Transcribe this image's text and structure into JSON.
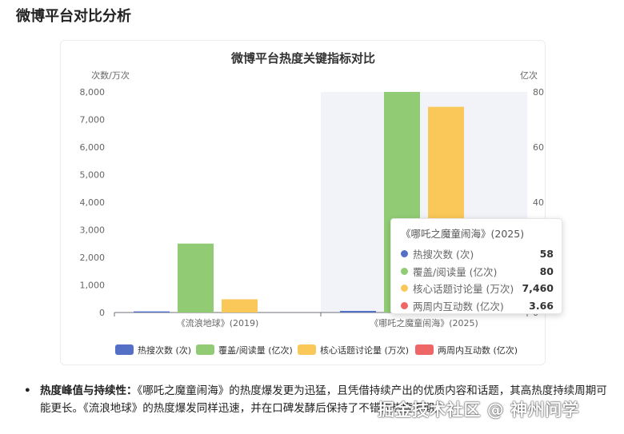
{
  "section_title": "微博平台对比分析",
  "tooltip": {
    "title": "《哪吒之魔童闹海》(2025)",
    "rows": [
      {
        "name": "热搜次数 (次)",
        "value": "58",
        "color": "#5470c6"
      },
      {
        "name": "覆盖/阅读量 (亿次)",
        "value": "80",
        "color": "#91cc75"
      },
      {
        "name": "核心话题讨论量 (万次)",
        "value": "7,460",
        "color": "#fac858"
      },
      {
        "name": "两周内互动数 (亿次)",
        "value": "3.66",
        "color": "#ee6666"
      }
    ]
  },
  "chart_data": {
    "type": "bar",
    "title": "微博平台热度关键指标对比",
    "categories": [
      "《流浪地球》(2019)",
      "《哪吒之魔童闹海》(2025)"
    ],
    "highlighted_category": "《哪吒之魔童闹海》(2025)",
    "y_left": {
      "label": "次数/万次",
      "min": 0,
      "max": 8000,
      "ticks": [
        "0",
        "1,000",
        "2,000",
        "3,000",
        "4,000",
        "5,000",
        "6,000",
        "7,000",
        "8,000"
      ]
    },
    "y_right": {
      "label": "亿次",
      "min": 0,
      "max": 80,
      "ticks": [
        "0",
        "20",
        "40",
        "60",
        "80"
      ]
    },
    "grid": false,
    "legend_position": "bottom",
    "series": [
      {
        "name": "热搜次数 (次)",
        "axis": "left",
        "color": "#5470c6",
        "values": [
          40,
          58
        ]
      },
      {
        "name": "覆盖/阅读量 (亿次)",
        "axis": "right",
        "color": "#91cc75",
        "values": [
          25,
          80
        ]
      },
      {
        "name": "核心话题讨论量 (万次)",
        "axis": "left",
        "color": "#fac858",
        "values": [
          480,
          7460
        ]
      },
      {
        "name": "两周内互动数 (亿次)",
        "axis": "right",
        "color": "#ee6666",
        "values": [
          0,
          3.66
        ]
      }
    ]
  },
  "bullet": {
    "heading": "热度峰值与持续性：",
    "text": "《哪吒之魔童闹海》的热度爆发更为迅猛，且凭借持续产出的优质内容和话题，其高热度持续周期可能更长。《流浪地球》的热度爆发同样迅速，并在口碑发酵后保持了不错的热度周期。"
  },
  "watermark": "掘金技术社区 @ 神州问学"
}
